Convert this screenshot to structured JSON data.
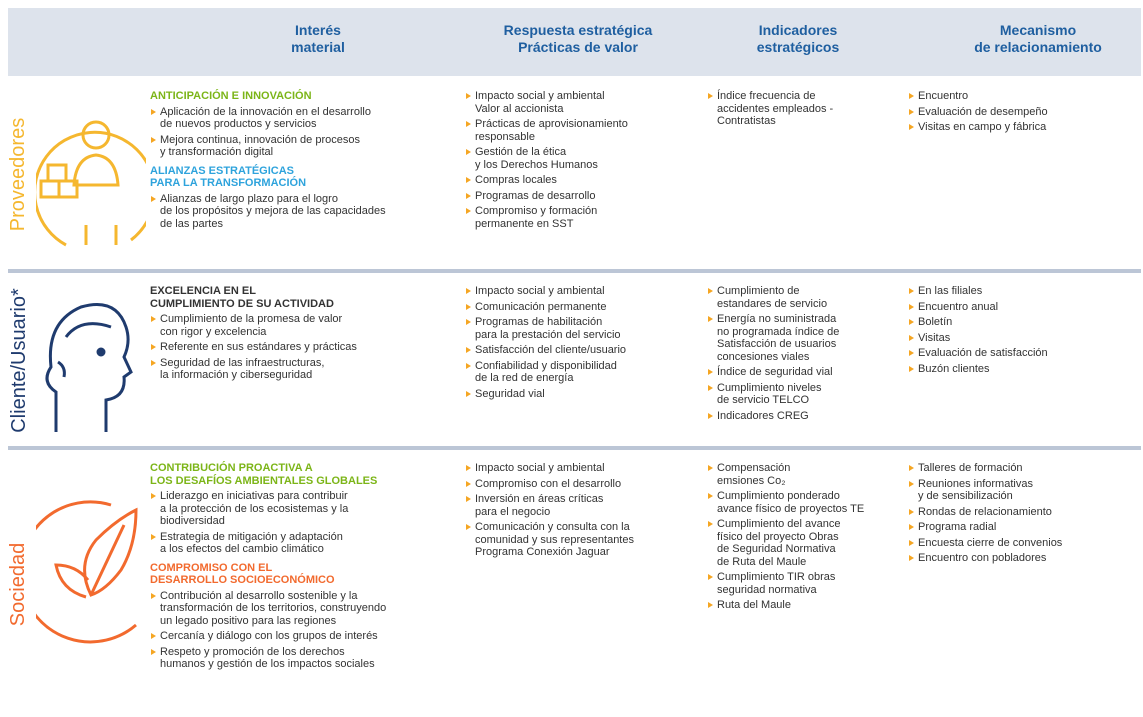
{
  "header": {
    "columns": [
      "Interés\nmaterial",
      "Respuesta estratégica\nPrácticas de valor",
      "Indicadores\nestratégicos",
      "Mecanismo\nde relacionamiento"
    ]
  },
  "rows": [
    {
      "label": "Proveedores",
      "color": "#f5b72f",
      "material": [
        {
          "heading": "ANTICIPACIÓN E INNOVACIÓN",
          "color": "#7cb518",
          "items": [
            "Aplicación de la innovación en el desarrollo\nde nuevos productos y servicios",
            "Mejora continua, innovación de procesos\ny transformación digital"
          ]
        },
        {
          "heading": "ALIANZAS ESTRATÉGICAS\nPARA LA TRANSFORMACIÓN",
          "color": "#2ea3dc",
          "items": [
            "Alianzas de largo plazo para el logro\nde los propósitos y mejora de las capacidades\nde las partes"
          ]
        }
      ],
      "strategy": [
        "Impacto social y ambiental\nValor al accionista",
        "Prácticas de aprovisionamiento\nresponsable",
        "Gestión de la ética\ny los Derechos Humanos",
        "Compras locales",
        "Programas de desarrollo",
        "Compromiso y formación\npermanente en SST"
      ],
      "indicators": [
        "Índice frecuencia de\naccidentes empleados -\nContratistas"
      ],
      "mechanisms": [
        "Encuentro",
        "Evaluación de desempeño",
        "Visitas en campo y fábrica"
      ]
    },
    {
      "label": "Cliente/Usuario*",
      "color": "#1f3b6e",
      "material": [
        {
          "heading": "EXCELENCIA EN EL\nCUMPLIMIENTO DE SU ACTIVIDAD",
          "color": "#333333",
          "items": [
            "Cumplimiento de la promesa de valor\ncon rigor y excelencia",
            "Referente en sus estándares y prácticas",
            "Seguridad de las infraestructuras,\nla información y ciberseguridad"
          ]
        }
      ],
      "strategy": [
        "Impacto social y ambiental",
        "Comunicación permanente",
        "Programas de habilitación\npara la prestación del servicio",
        "Satisfacción del cliente/usuario",
        "Confiabilidad y disponibilidad\nde la red de energía",
        "Seguridad vial"
      ],
      "indicators": [
        "Cumplimiento de\nestandares de servicio",
        "Energía no suministrada\nno programada índice de\nSatisfacción de usuarios\nconcesiones viales",
        "Índice de seguridad vial",
        "Cumplimiento niveles\nde servicio TELCO",
        "Indicadores CREG"
      ],
      "mechanisms": [
        "En las filiales",
        "Encuentro anual",
        "Boletín",
        "Visitas",
        "Evaluación de satisfacción",
        "Buzón clientes"
      ]
    },
    {
      "label": "Sociedad",
      "color": "#f26a2e",
      "material": [
        {
          "heading": "CONTRIBUCIÓN PROACTIVA A\nLOS DESAFÍOS AMBIENTALES GLOBALES",
          "color": "#7cb518",
          "items": [
            "Liderazgo en iniciativas para contribuir\na la protección de los ecosistemas y la\nbiodiversidad",
            "Estrategia de mitigación y adaptación\na los efectos del cambio climático"
          ]
        },
        {
          "heading": "COMPROMISO CON EL\nDESARROLLO SOCIOECONÓMICO",
          "color": "#f26a2e",
          "items": [
            "Contribución al desarrollo sostenible y la\ntransformación de los territorios, construyendo\nun legado positivo para las regiones",
            "Cercanía y diálogo con los grupos de interés",
            "Respeto y promoción de los derechos\nhumanos y gestión de los impactos sociales"
          ]
        }
      ],
      "strategy": [
        "Impacto social y ambiental",
        "Compromiso con el desarrollo",
        "Inversión en áreas críticas\npara el negocio",
        "Comunicación y consulta con la\ncomunidad y sus representantes\nPrograma Conexión Jaguar"
      ],
      "indicators": [
        "Compensación\nemsiones Co₂",
        "Cumplimiento ponderado\navance físico de proyectos TE",
        "Cumplimiento del avance\nfísico del proyecto Obras\nde Seguridad Normativa\nde Ruta del Maule",
        "Cumplimiento TIR obras\nseguridad normativa",
        "Ruta del Maule"
      ],
      "mechanisms": [
        "Talleres de formación",
        "Reuniones informativas\ny de sensibilización",
        "Rondas de relacionamiento",
        "Programa radial",
        "Encuesta cierre de convenios",
        "Encuentro con pobladores"
      ]
    }
  ]
}
